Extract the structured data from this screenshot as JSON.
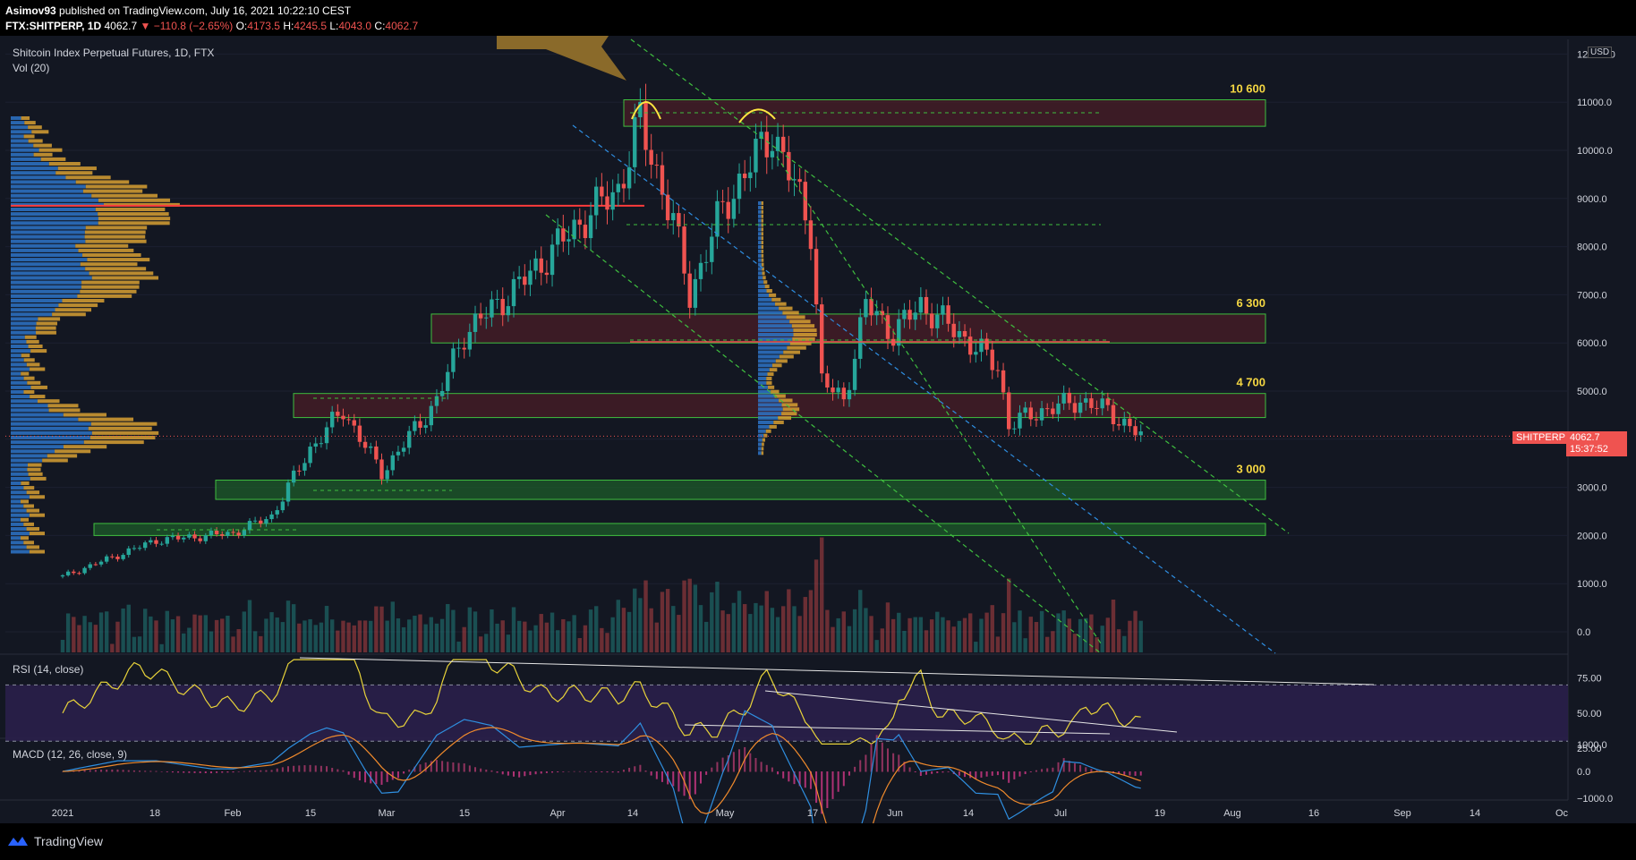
{
  "header": {
    "author": "Asimov93",
    "published_text": "published on TradingView.com, July 16, 2021 10:22:10 CEST",
    "symbol": "FTX:SHITPERP, 1D",
    "last": "4062.7",
    "change": "▼ −110.8 (−2.65%)",
    "open_label": "O:",
    "open": "4173.5",
    "high_label": "H:",
    "high": "4245.5",
    "low_label": "L:",
    "low": "4043.0",
    "close_label": "C:",
    "close": "4062.7"
  },
  "legend": {
    "title": "Shitcoin Index Perpetual Futures, 1D, FTX",
    "volume": "Vol (20)",
    "rsi": "RSI (14, close)",
    "macd": "MACD (12, 26, close, 9)"
  },
  "price_scale": {
    "currency": "USD",
    "ticks": [
      "12 000.0",
      "11000.0",
      "10000.0",
      "9000.0",
      "8000.0",
      "7000.0",
      "6000.0",
      "5000.0",
      "4000.0",
      "3000.0",
      "2000.0",
      "1000.0",
      "0.0"
    ],
    "symbol_tag": "SHITPERP",
    "last_price": "4062.7",
    "countdown": "15:37:52"
  },
  "rsi_scale": {
    "ticks": [
      "75.00",
      "50.00",
      "25.00"
    ]
  },
  "macd_scale": {
    "ticks": [
      "1000.0",
      "0.0",
      "−1000.0"
    ]
  },
  "time_axis": {
    "ticks": [
      "2021",
      "18",
      "Feb",
      "15",
      "Mar",
      "15",
      "Apr",
      "14",
      "May",
      "17",
      "Jun",
      "14",
      "Jul",
      "19",
      "Aug",
      "16",
      "Sep",
      "14",
      "Oc"
    ]
  },
  "zone_labels": [
    "10 600",
    "6 300",
    "4 700",
    "3 000"
  ],
  "footer": {
    "brand": "TradingView"
  },
  "colors": {
    "background": "#131722",
    "up_candle": "#26a69a",
    "down_candle": "#ef5350",
    "zone_red": "#4a1e27",
    "zone_green": "#1e5c2a",
    "volume_profile_blue": "#2e74c8",
    "volume_profile_orange": "#d8a032",
    "rsi_line": "#e8d33a",
    "rsi_band": "#2a1f4a",
    "macd_line": "#2f8fe0",
    "signal_line": "#f08a2c",
    "zone_label": "#f5d742"
  },
  "chart_data": [
    {
      "type": "candlestick",
      "title": "Shitcoin Index Perpetual Futures, 1D, FTX",
      "x_range": [
        "2021-01-01",
        "2021-10-01"
      ],
      "y_range": [
        0,
        12000
      ],
      "key_points": [
        {
          "date": "2021-01-01",
          "close": 1150
        },
        {
          "date": "2021-01-18",
          "close": 1900
        },
        {
          "date": "2021-02-01",
          "close": 2050
        },
        {
          "date": "2021-02-08",
          "close": 2400
        },
        {
          "date": "2021-02-15",
          "close": 3800
        },
        {
          "date": "2021-02-21",
          "close": 4600
        },
        {
          "date": "2021-02-28",
          "close": 3300
        },
        {
          "date": "2021-03-10",
          "close": 4800
        },
        {
          "date": "2021-03-15",
          "close": 6200
        },
        {
          "date": "2021-03-25",
          "close": 7200
        },
        {
          "date": "2021-04-05",
          "close": 8500
        },
        {
          "date": "2021-04-12",
          "close": 9200
        },
        {
          "date": "2021-04-16",
          "close": 10600
        },
        {
          "date": "2021-04-22",
          "close": 8500
        },
        {
          "date": "2021-04-25",
          "close": 7000
        },
        {
          "date": "2021-05-01",
          "close": 8800
        },
        {
          "date": "2021-05-10",
          "close": 10400
        },
        {
          "date": "2021-05-17",
          "close": 8400
        },
        {
          "date": "2021-05-19",
          "close": 5200
        },
        {
          "date": "2021-05-23",
          "close": 4800
        },
        {
          "date": "2021-05-27",
          "close": 6800
        },
        {
          "date": "2021-06-01",
          "close": 6200
        },
        {
          "date": "2021-06-06",
          "close": 6800
        },
        {
          "date": "2021-06-14",
          "close": 6100
        },
        {
          "date": "2021-06-20",
          "close": 5500
        },
        {
          "date": "2021-06-22",
          "close": 4300
        },
        {
          "date": "2021-06-28",
          "close": 4600
        },
        {
          "date": "2021-07-05",
          "close": 4800
        },
        {
          "date": "2021-07-10",
          "close": 4600
        },
        {
          "date": "2021-07-16",
          "close": 4062.7
        }
      ],
      "zones": [
        {
          "label": "10 600",
          "low": 10500,
          "high": 11050,
          "kind": "resistance"
        },
        {
          "label": "6 300",
          "low": 6000,
          "high": 6600,
          "kind": "resistance"
        },
        {
          "label": "4 700",
          "low": 4450,
          "high": 4950,
          "kind": "resistance"
        },
        {
          "label": "3 000",
          "low": 2750,
          "high": 3150,
          "kind": "support"
        },
        {
          "label": "",
          "low": 2000,
          "high": 2250,
          "kind": "support"
        }
      ],
      "poc_level": 8850,
      "last_price": 4062.7
    },
    {
      "type": "line",
      "title": "RSI (14, close)",
      "y_range": [
        20,
        90
      ],
      "levels": [
        70,
        30
      ],
      "ticks": [
        75,
        50,
        25
      ]
    },
    {
      "type": "line",
      "title": "MACD (12, 26, close, 9)",
      "series": [
        {
          "name": "MACD"
        },
        {
          "name": "Signal"
        },
        {
          "name": "Histogram"
        }
      ],
      "ticks": [
        1000,
        0,
        -1000
      ]
    }
  ]
}
